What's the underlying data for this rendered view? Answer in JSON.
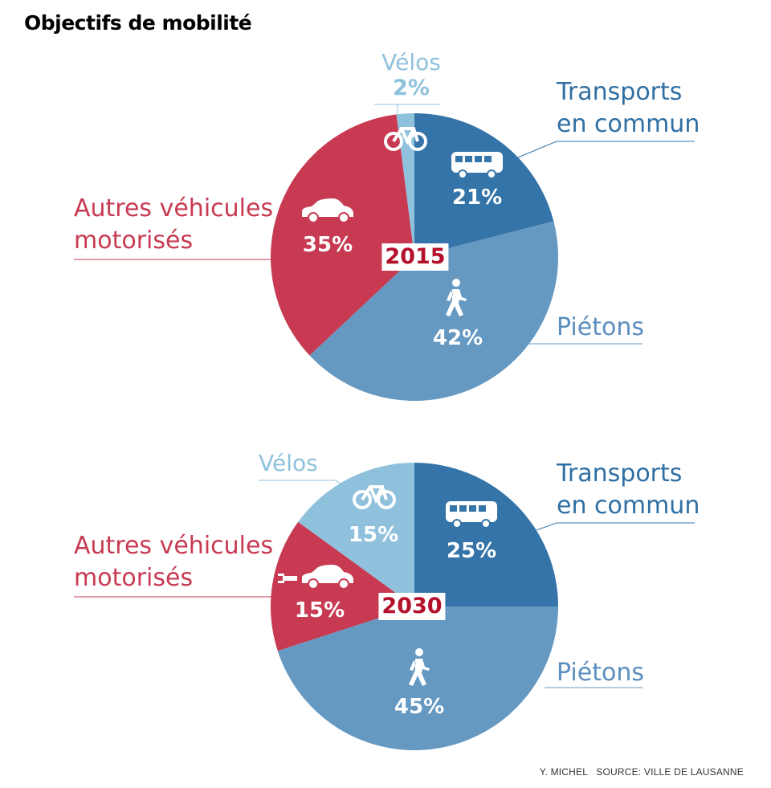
{
  "title": "Objectifs de mobilité",
  "credit": "Y. MICHEL   SOURCE: VILLE DE LAUSANNE",
  "colors": {
    "transports": "#3574a8",
    "pietons": "#6699c2",
    "autres": "#c73a52",
    "velos": "#8fc1dc",
    "year": "#b3102b"
  },
  "chart_data": [
    {
      "type": "pie",
      "year_label": "2015",
      "slices": [
        {
          "name": "Transports en commun",
          "value": 21,
          "label": "21%",
          "icon": "bus-icon"
        },
        {
          "name": "Piétons",
          "value": 42,
          "label": "42%",
          "icon": "pedestrian-icon"
        },
        {
          "name": "Autres véhicules motorisés",
          "value": 35,
          "label": "35%",
          "icon": "car-icon"
        },
        {
          "name": "Vélos",
          "value": 2,
          "label": "2%",
          "icon": "bicycle-icon"
        }
      ]
    },
    {
      "type": "pie",
      "year_label": "2030",
      "slices": [
        {
          "name": "Transports en commun",
          "value": 25,
          "label": "25%",
          "icon": "bus-icon"
        },
        {
          "name": "Piétons",
          "value": 45,
          "label": "45%",
          "icon": "pedestrian-icon"
        },
        {
          "name": "Autres véhicules motorisés",
          "value": 15,
          "label": "15%",
          "icon": "electric-car-icon"
        },
        {
          "name": "Vélos",
          "value": 15,
          "label": "15%",
          "icon": "bicycle-icon"
        }
      ]
    }
  ],
  "labels": {
    "transports_1": "Transports",
    "transports_2": "en commun",
    "pietons": "Piétons",
    "autres_1": "Autres véhicules",
    "autres_2": "motorisés",
    "velos": "Vélos"
  }
}
